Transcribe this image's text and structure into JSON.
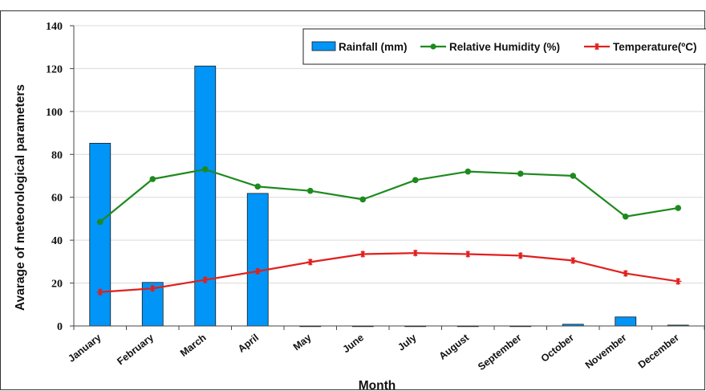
{
  "chart_data": {
    "type": "bar+line",
    "title": "",
    "xlabel": "Month",
    "ylabel": "Avarage of meteorological parameters",
    "ylim": [
      0,
      140
    ],
    "yticks": [
      0,
      20,
      40,
      60,
      80,
      100,
      120,
      140
    ],
    "grid": "horizontal",
    "legend_position": "top-right",
    "categories": [
      "January",
      "February",
      "March",
      "April",
      "May",
      "June",
      "July",
      "August",
      "September",
      "October",
      "November",
      "December"
    ],
    "series": [
      {
        "name": "Rainfall (mm)",
        "type": "bar",
        "color": "#0095f6",
        "values": [
          85.2,
          20.3,
          121.2,
          61.8,
          0,
          0,
          0,
          0,
          0,
          0.8,
          4.2,
          0.4
        ]
      },
      {
        "name": "Relative Humidity (%)",
        "type": "line",
        "marker": "circle",
        "color": "#1e8a1e",
        "values": [
          48.5,
          68.5,
          73,
          65,
          63,
          59,
          68,
          72,
          71,
          70,
          51,
          55
        ]
      },
      {
        "name": "Temperature(ºC)",
        "type": "line",
        "marker": "star",
        "color": "#e0201e",
        "values": [
          15.8,
          17.5,
          21.5,
          25.5,
          29.8,
          33.5,
          34,
          33.5,
          32.8,
          30.5,
          24.5,
          20.8
        ]
      }
    ]
  }
}
